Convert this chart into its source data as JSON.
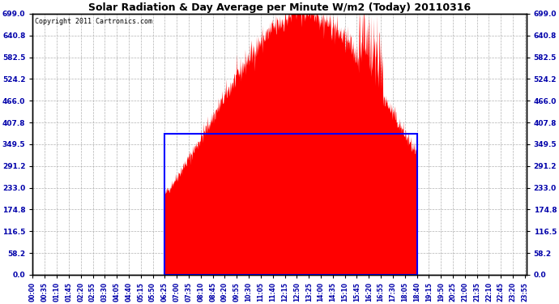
{
  "title": "Solar Radiation & Day Average per Minute W/m2 (Today) 20110316",
  "copyright": "Copyright 2011 Cartronics.com",
  "yticks": [
    0.0,
    58.2,
    116.5,
    174.8,
    233.0,
    291.2,
    349.5,
    407.8,
    466.0,
    524.2,
    582.5,
    640.8,
    699.0
  ],
  "ymax": 699.0,
  "ymin": 0.0,
  "total_minutes": 1440,
  "sunrise_minute": 385,
  "sunset_minute": 1120,
  "peak_minute": 790,
  "peak_value": 699.0,
  "day_avg": 378.0,
  "bar_color": "#FF0000",
  "avg_box_color": "#0000FF",
  "background_color": "#FFFFFF",
  "grid_color": "#AAAAAA",
  "title_color": "#000000",
  "copyright_color": "#000000",
  "xtick_interval": 35,
  "figwidth": 6.9,
  "figheight": 3.75,
  "dpi": 100
}
